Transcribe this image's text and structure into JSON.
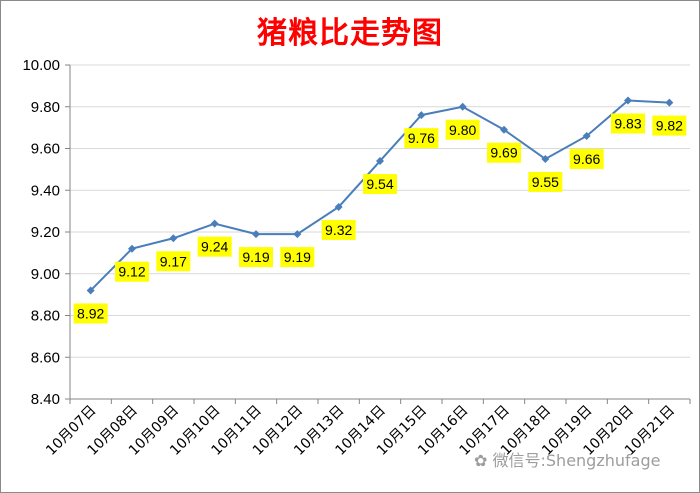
{
  "chart_data": {
    "type": "line",
    "title": "猪粮比走势图",
    "xlabel": "",
    "ylabel": "",
    "categories": [
      "10月07日",
      "10月08日",
      "10月09日",
      "10月10日",
      "10月11日",
      "10月12日",
      "10月13日",
      "10月14日",
      "10月15日",
      "10月16日",
      "10月17日",
      "10月18日",
      "10月19日",
      "10月20日",
      "10月21日"
    ],
    "series": [
      {
        "values": [
          8.92,
          9.12,
          9.17,
          9.24,
          9.19,
          9.19,
          9.32,
          9.54,
          9.76,
          9.8,
          9.69,
          9.55,
          9.66,
          9.83,
          9.82
        ]
      }
    ],
    "data_labels": [
      "8.92",
      "9.12",
      "9.17",
      "9.24",
      "9.19",
      "9.19",
      "9.32",
      "9.54",
      "9.76",
      "9.80",
      "9.69",
      "9.55",
      "9.66",
      "9.83",
      "9.82"
    ],
    "ylim": [
      8.4,
      10.0
    ],
    "yticks": [
      "8.40",
      "8.60",
      "8.80",
      "9.00",
      "9.20",
      "9.40",
      "9.60",
      "9.80",
      "10.00"
    ],
    "grid": true,
    "legend": "none",
    "colors": {
      "line": "#4a7ebb",
      "label_bg": "#ffff00",
      "title": "#ff0000",
      "grid": "#d9d9d9"
    }
  },
  "watermark": "微信号:Shengzhufage"
}
